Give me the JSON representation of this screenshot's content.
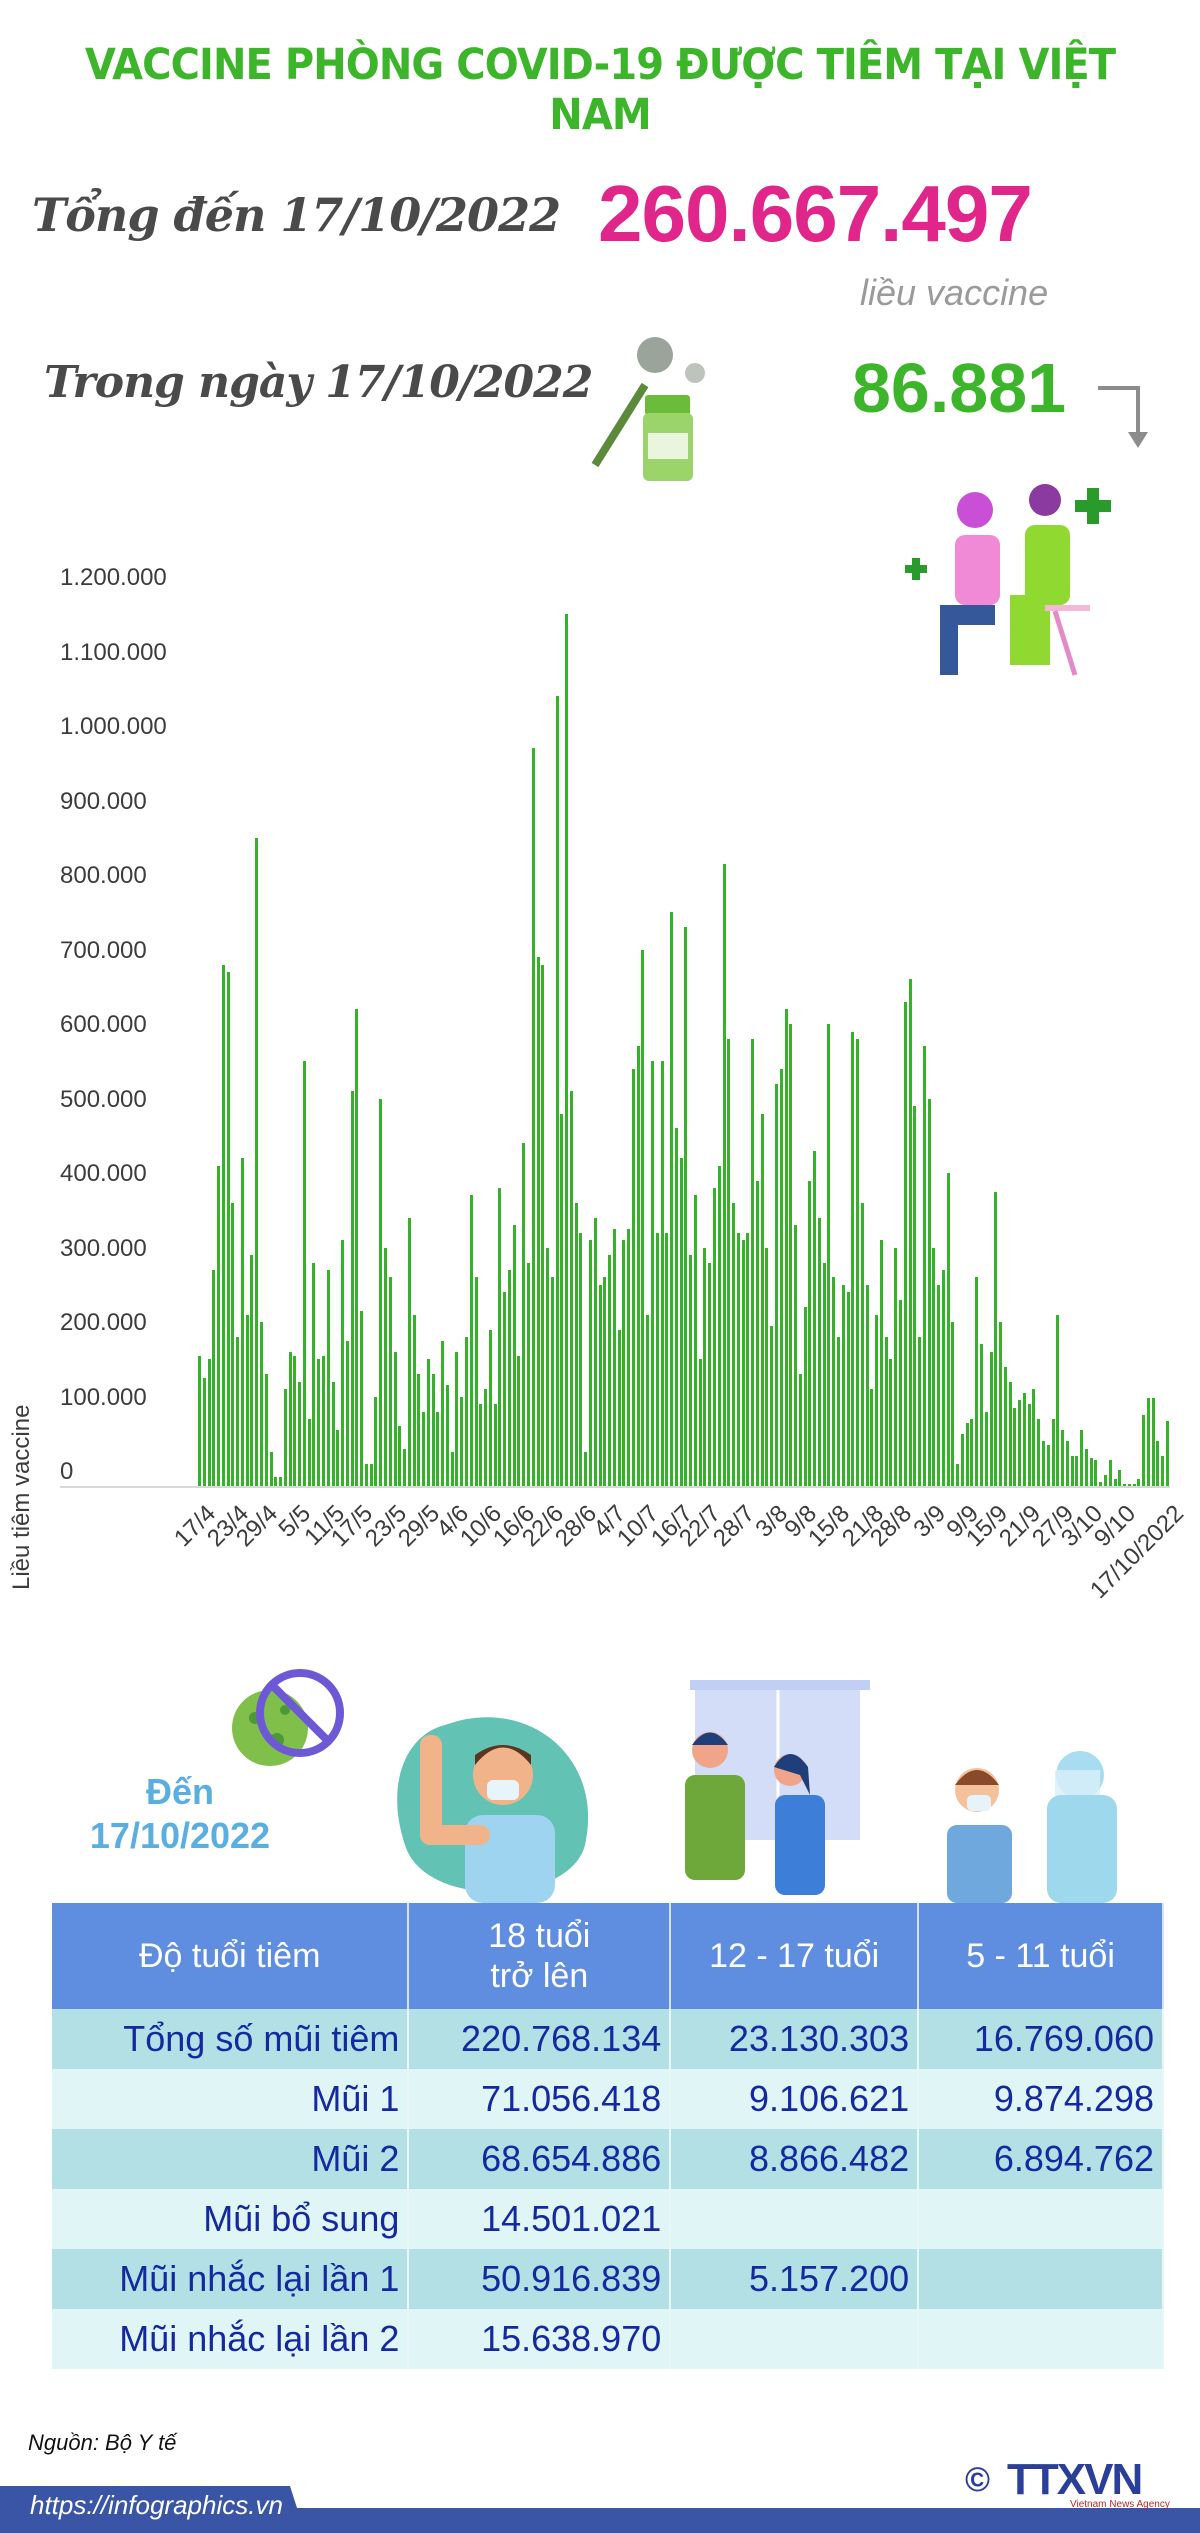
{
  "header": {
    "title": "VACCINE PHÒNG COVID-19 ĐƯỢC TIÊM TẠI VIỆT NAM"
  },
  "summary": {
    "total_label": "Tổng đến 17/10/2022",
    "total_value": "260.667.497",
    "total_unit": "liều vaccine",
    "day_label": "Trong ngày 17/10/2022",
    "day_value": "86.881",
    "day_trend_icon": "arrow-down-icon",
    "colors": {
      "title": "#3cb52a",
      "total": "#e0268b",
      "day": "#3cb52a"
    }
  },
  "chart_data": {
    "type": "bar",
    "title": "",
    "xlabel": "",
    "ylabel": "Liều tiêm vaccine",
    "ylim": [
      0,
      1200000
    ],
    "yticks": [
      "1.200.000",
      "1.100.000",
      "1.000.000",
      "900.000",
      "800.000",
      "700.000",
      "600.000",
      "500.000",
      "400.000",
      "300.000",
      "200.000",
      "100.000",
      "0"
    ],
    "grid": false,
    "bar_color": "#36b12a",
    "x_tick_labels": [
      "17/4",
      "23/4",
      "29/4",
      "5/5",
      "11/5",
      "17/5",
      "23/5",
      "29/5",
      "4/6",
      "10/6",
      "16/6",
      "22/6",
      "28/6",
      "4/7",
      "10/7",
      "16/7",
      "22/7",
      "28/7",
      "3/8",
      "9/8",
      "15/8",
      "21/8",
      "28/8",
      "3/9",
      "9/9",
      "15/9",
      "21/9",
      "27/9",
      "3/10",
      "9/10",
      "17/10/2022"
    ],
    "x_range": [
      "17/4/2022",
      "17/10/2022"
    ],
    "values": [
      175000,
      145000,
      170000,
      290000,
      430000,
      700000,
      690000,
      380000,
      200000,
      440000,
      230000,
      310000,
      870000,
      220000,
      150000,
      45000,
      12000,
      12000,
      130000,
      180000,
      175000,
      140000,
      570000,
      90000,
      300000,
      170000,
      175000,
      290000,
      140000,
      75000,
      330000,
      195000,
      530000,
      640000,
      235000,
      30000,
      30000,
      120000,
      520000,
      320000,
      280000,
      180000,
      80000,
      50000,
      360000,
      230000,
      150000,
      100000,
      170000,
      150000,
      100000,
      195000,
      135000,
      45000,
      180000,
      120000,
      200000,
      390000,
      280000,
      110000,
      130000,
      210000,
      110000,
      400000,
      260000,
      290000,
      350000,
      175000,
      460000,
      300000,
      990000,
      710000,
      700000,
      320000,
      280000,
      1060000,
      500000,
      1170000,
      530000,
      380000,
      340000,
      45000,
      330000,
      360000,
      270000,
      280000,
      310000,
      345000,
      210000,
      330000,
      345000,
      560000,
      590000,
      720000,
      230000,
      570000,
      340000,
      570000,
      340000,
      770000,
      480000,
      440000,
      750000,
      310000,
      390000,
      170000,
      320000,
      300000,
      400000,
      430000,
      835000,
      600000,
      380000,
      340000,
      330000,
      340000,
      600000,
      410000,
      500000,
      320000,
      215000,
      540000,
      560000,
      640000,
      620000,
      350000,
      150000,
      240000,
      410000,
      450000,
      360000,
      300000,
      620000,
      280000,
      200000,
      270000,
      260000,
      610000,
      600000,
      380000,
      270000,
      130000,
      230000,
      330000,
      200000,
      170000,
      320000,
      250000,
      650000,
      680000,
      510000,
      200000,
      590000,
      520000,
      320000,
      270000,
      290000,
      420000,
      220000,
      30000,
      70000,
      85000,
      90000,
      280000,
      190000,
      100000,
      180000,
      395000,
      220000,
      160000,
      140000,
      105000,
      115000,
      125000,
      110000,
      130000,
      90000,
      60000,
      55000,
      90000,
      230000,
      75000,
      60000,
      40000,
      40000,
      75000,
      50000,
      38000,
      35000,
      5000,
      15000,
      35000,
      10000,
      22000,
      3000,
      3000,
      3000,
      10000,
      95000,
      118000,
      118000,
      60000,
      40000,
      86881
    ]
  },
  "age_section": {
    "label_line1": "Đến",
    "label_line2": "17/10/2022",
    "color": "#5aaee0"
  },
  "table": {
    "headers": [
      "Độ tuổi tiêm",
      "18 tuổi\ntrở lên",
      "12 - 17 tuổi",
      "5 - 11 tuổi"
    ],
    "header_18_line1": "18 tuổi",
    "header_18_line2": "trở lên",
    "rows": [
      {
        "label": "Tổng số mũi tiêm",
        "a18": "220.768.134",
        "a12": "23.130.303",
        "a5": "16.769.060"
      },
      {
        "label": "Mũi 1",
        "a18": "71.056.418",
        "a12": "9.106.621",
        "a5": "9.874.298"
      },
      {
        "label": "Mũi 2",
        "a18": "68.654.886",
        "a12": "8.866.482",
        "a5": "6.894.762"
      },
      {
        "label": "Mũi bổ sung",
        "a18": "14.501.021",
        "a12": "",
        "a5": ""
      },
      {
        "label": "Mũi nhắc lại lần 1",
        "a18": "50.916.839",
        "a12": "5.157.200",
        "a5": ""
      },
      {
        "label": "Mũi nhắc lại lần 2",
        "a18": "15.638.970",
        "a12": "",
        "a5": ""
      }
    ],
    "colors": {
      "header_bg": "#5f8ee1",
      "row_dark": "#b3e0e4",
      "row_light": "#e0f5f6",
      "text": "#1428a0"
    }
  },
  "footer": {
    "source": "Nguồn: Bộ Y tế",
    "url": "https://infographics.vn",
    "logo_text": "TTXVN",
    "logo_subtext": "Vietnam News Agency",
    "copyright_symbol": "©"
  }
}
